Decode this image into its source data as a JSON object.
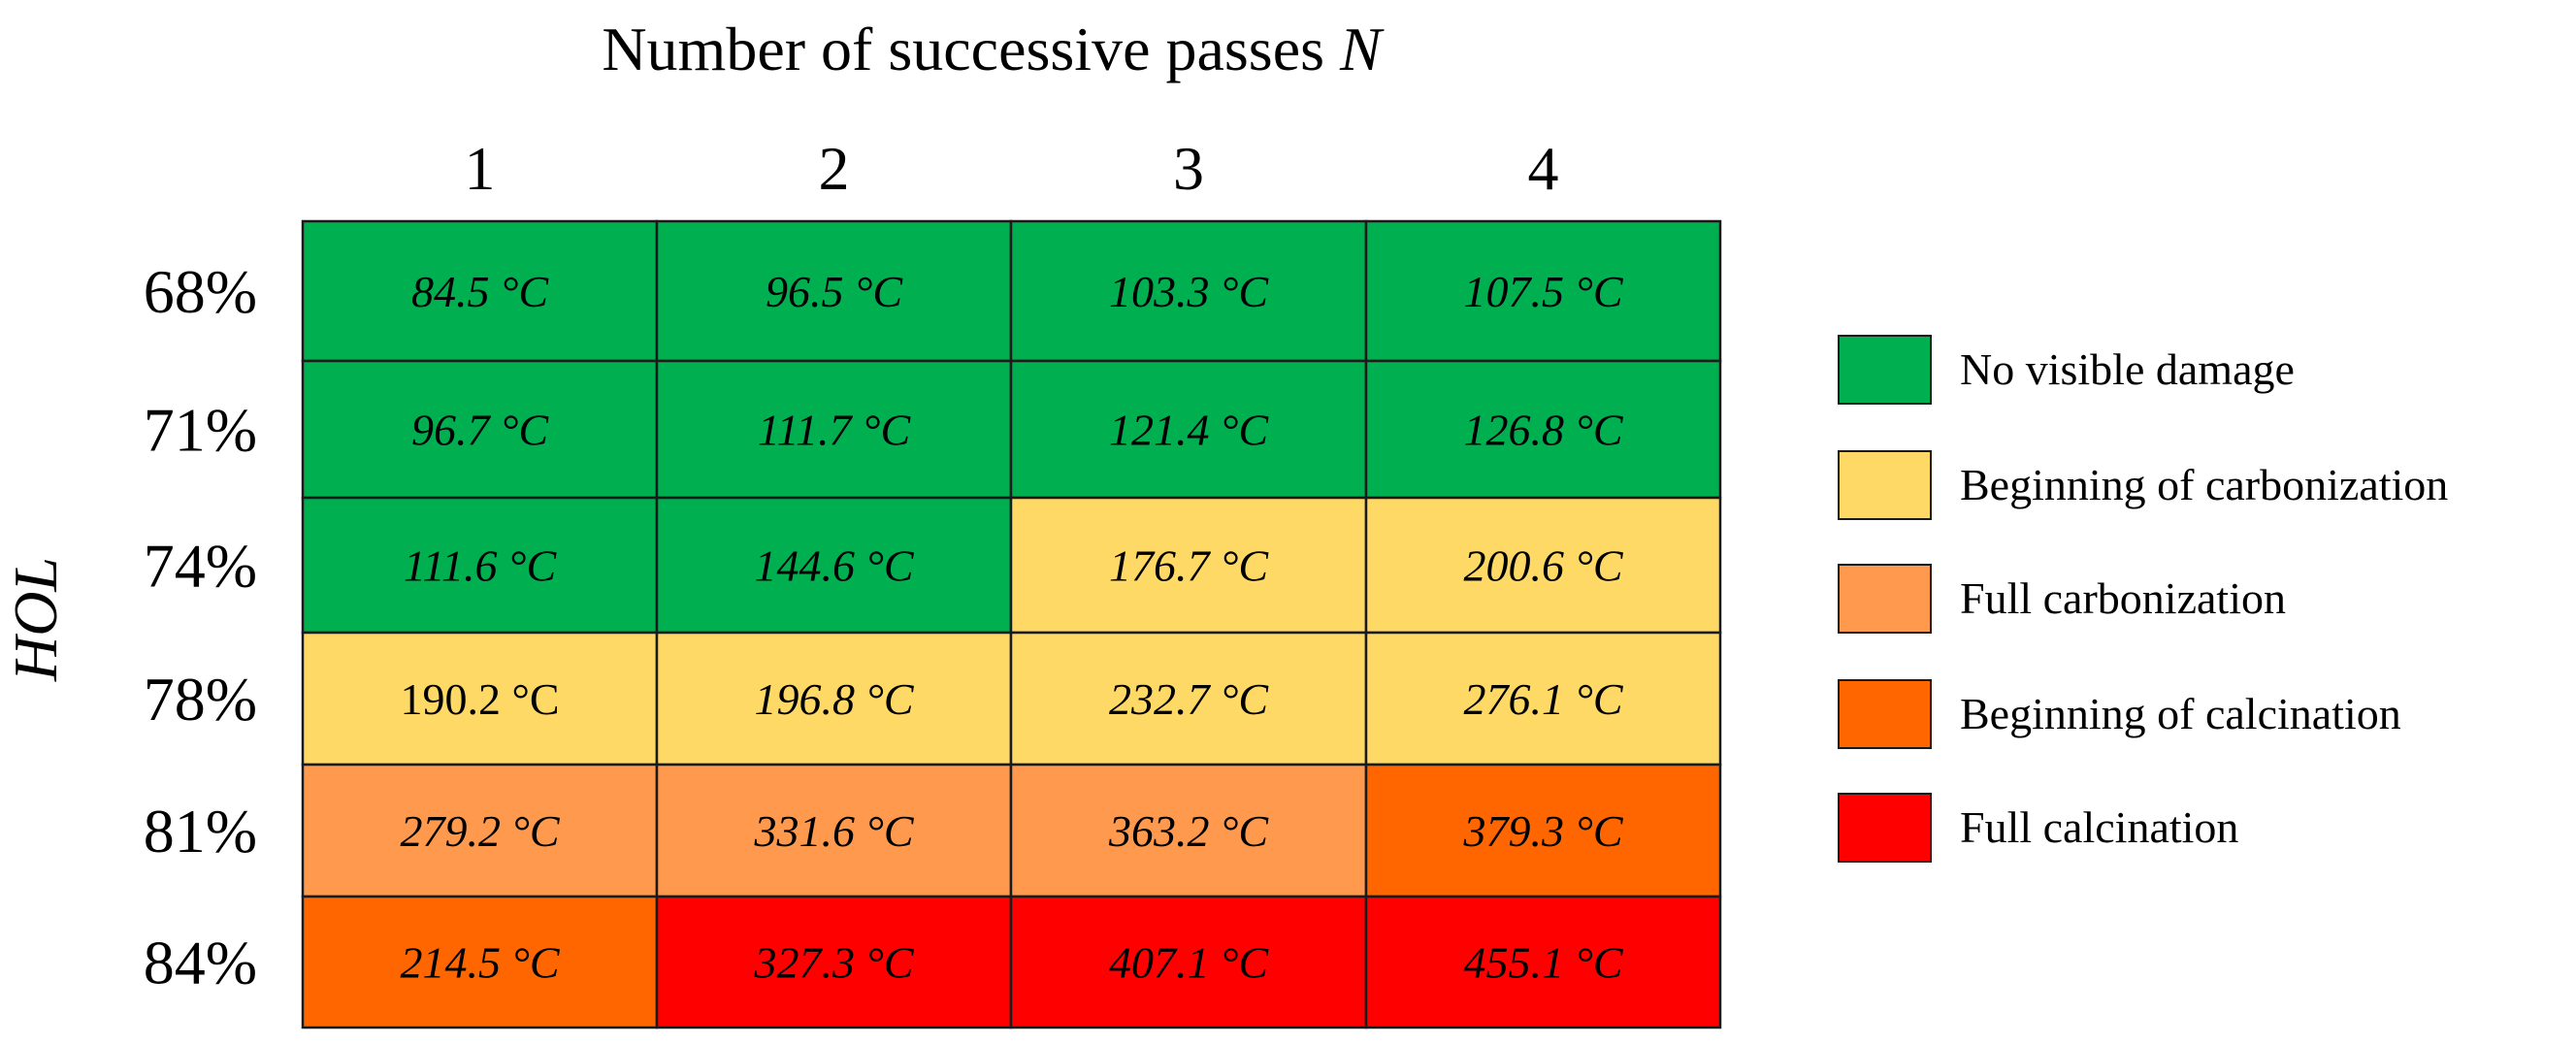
{
  "chart_data": {
    "type": "heatmap",
    "xlabel": "Number of successive passes N",
    "ylabel": "HOL",
    "x_categories": [
      "1",
      "2",
      "3",
      "4"
    ],
    "y_categories": [
      "68%",
      "71%",
      "74%",
      "78%",
      "81%",
      "84%"
    ],
    "cells": [
      [
        {
          "text": "84.5 °C",
          "value": 84.5,
          "category": 0,
          "italic": true
        },
        {
          "text": "96.5 °C",
          "value": 96.5,
          "category": 0,
          "italic": true
        },
        {
          "text": "103.3 °C",
          "value": 103.3,
          "category": 0,
          "italic": true
        },
        {
          "text": "107.5 °C",
          "value": 107.5,
          "category": 0,
          "italic": true
        }
      ],
      [
        {
          "text": "96.7 °C",
          "value": 96.7,
          "category": 0,
          "italic": true
        },
        {
          "text": "111.7 °C",
          "value": 111.7,
          "category": 0,
          "italic": true
        },
        {
          "text": "121.4 °C",
          "value": 121.4,
          "category": 0,
          "italic": true
        },
        {
          "text": "126.8 °C",
          "value": 126.8,
          "category": 0,
          "italic": true
        }
      ],
      [
        {
          "text": "111.6 °C",
          "value": 111.6,
          "category": 0,
          "italic": true
        },
        {
          "text": "144.6 °C",
          "value": 144.6,
          "category": 0,
          "italic": true
        },
        {
          "text": "176.7 °C",
          "value": 176.7,
          "category": 1,
          "italic": true
        },
        {
          "text": "200.6 °C",
          "value": 200.6,
          "category": 1,
          "italic": true
        }
      ],
      [
        {
          "text": "190.2 °C",
          "value": 190.2,
          "category": 1,
          "italic": false
        },
        {
          "text": "196.8 °C",
          "value": 196.8,
          "category": 1,
          "italic": true
        },
        {
          "text": "232.7 °C",
          "value": 232.7,
          "category": 1,
          "italic": true
        },
        {
          "text": "276.1 °C",
          "value": 276.1,
          "category": 1,
          "italic": true
        }
      ],
      [
        {
          "text": "279.2 °C",
          "value": 279.2,
          "category": 2,
          "italic": true
        },
        {
          "text": "331.6 °C",
          "value": 331.6,
          "category": 2,
          "italic": true
        },
        {
          "text": "363.2 °C",
          "value": 363.2,
          "category": 2,
          "italic": true
        },
        {
          "text": "379.3 °C",
          "value": 379.3,
          "category": 3,
          "italic": true
        }
      ],
      [
        {
          "text": "214.5 °C",
          "value": 214.5,
          "category": 3,
          "italic": true
        },
        {
          "text": "327.3 °C",
          "value": 327.3,
          "category": 4,
          "italic": true
        },
        {
          "text": "407.1 °C",
          "value": 407.1,
          "category": 4,
          "italic": true
        },
        {
          "text": "455.1 °C",
          "value": 455.1,
          "category": 4,
          "italic": true
        }
      ]
    ],
    "legend": {
      "position": "right",
      "items": [
        {
          "label": "No visible damage",
          "color": "#00b050"
        },
        {
          "label": "Beginning of carbonization",
          "color": "#ffd966"
        },
        {
          "label": "Full carbonization",
          "color": "#ff994d"
        },
        {
          "label": "Beginning of calcination",
          "color": "#ff6600"
        },
        {
          "label": "Full calcination",
          "color": "#ff0000"
        }
      ]
    },
    "grid": true
  }
}
